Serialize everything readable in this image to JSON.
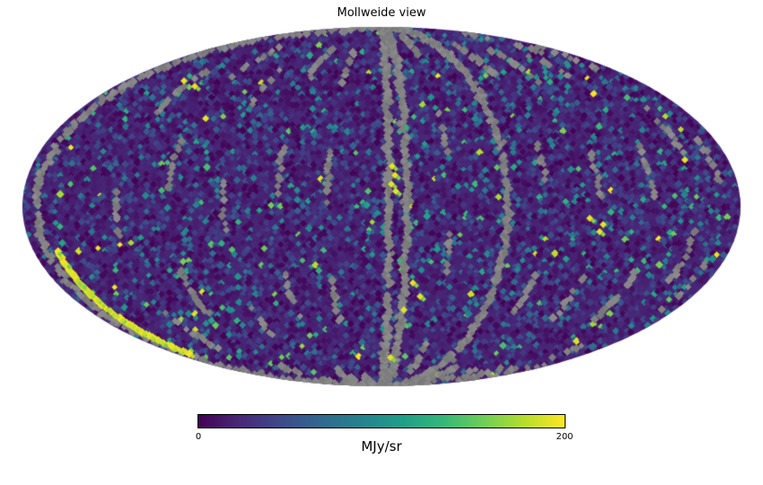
{
  "chart_data": {
    "type": "heatmap",
    "projection": "mollweide",
    "title": "Mollweide view",
    "colorbar": {
      "label": "MJy/sr",
      "min": 0,
      "max": 200,
      "tick_labels": [
        "0",
        "200"
      ],
      "colormap": "viridis",
      "colormap_stops": [
        "#440154",
        "#482878",
        "#3e4989",
        "#31688e",
        "#26828e",
        "#1f9e89",
        "#35b779",
        "#6ece58",
        "#b5de2b",
        "#fde725"
      ]
    },
    "masked_color": "#828282",
    "background_color": "#ffffff",
    "map": {
      "base_value_range": [
        0,
        0.3
      ],
      "masked_meridians_full": [
        -0.96,
        0.02,
        0.07,
        0.35
      ],
      "masked_meridians_partial": [
        -0.74,
        -0.6,
        -0.44,
        -0.29,
        -0.15,
        0.19,
        0.46,
        0.61,
        0.76,
        0.88,
        0.95
      ],
      "bright_streak": {
        "meridian_fraction": -0.93,
        "theta_deg": [
          -55,
          -14
        ]
      },
      "bright_spots": [
        [
          -0.55,
          -0.7
        ],
        [
          -0.52,
          -0.67
        ],
        [
          0.03,
          -0.225
        ],
        [
          0.0375,
          -0.175
        ],
        [
          0.0275,
          -0.125
        ],
        [
          0.04,
          -0.085
        ],
        [
          0.0625,
          0.575
        ],
        [
          0.0875,
          0.425
        ],
        [
          0.1075,
          0.5
        ],
        [
          0.58,
          0.065
        ],
        [
          0.6075,
          0.14
        ],
        [
          0.6175,
          0.1
        ],
        [
          0.025,
          0.84
        ],
        [
          0.845,
          -0.26
        ]
      ],
      "teal_spots": [
        [
          0.09,
          -0.5
        ],
        [
          0.12,
          -0.35
        ],
        [
          0.07,
          -0.44
        ],
        [
          0.1,
          -0.28
        ],
        [
          0.56,
          -0.12
        ],
        [
          -0.22,
          0.3
        ],
        [
          0.15,
          -0.55
        ],
        [
          0.05,
          0.3
        ]
      ]
    }
  }
}
